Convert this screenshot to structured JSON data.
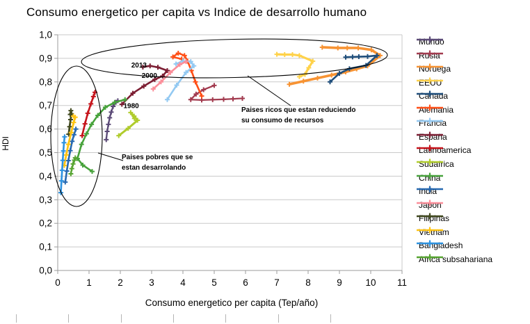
{
  "title": "Consumo energetico per capita vs Indice de desarrollo humano",
  "axes": {
    "x_label": "Consumo energetico per capita (Tep/año)",
    "y_label": "HDI",
    "x_ticks": [
      "0",
      "1",
      "2",
      "3",
      "4",
      "5",
      "6",
      "7",
      "8",
      "9",
      "10",
      "11"
    ],
    "y_ticks": [
      "0,0",
      "0,1",
      "0,2",
      "0,3",
      "0,4",
      "0,5",
      "0,6",
      "0,7",
      "0,8",
      "0,9",
      "1,0"
    ]
  },
  "annotations": {
    "year_2013": "2013",
    "year_2000": "2000",
    "year_1980": "1980",
    "poor_line1": "Paises pobres que se",
    "poor_line2": "estan desarrolando",
    "rich_line1": "Paises ricos que estan reduciendo",
    "rich_line2": "su consumo de recursos"
  },
  "chart_data": {
    "type": "line",
    "title": "Consumo energetico per capita vs Indice de desarrollo humano",
    "xlabel": "Consumo energetico per capita (Tep/año)",
    "ylabel": "HDI",
    "xlim": [
      0,
      11
    ],
    "ylim": [
      0.0,
      1.0
    ],
    "grid": "horizontal",
    "legend_position": "right",
    "marker": "plus",
    "series": [
      {
        "name": "Mundo",
        "color": "#5B4A77",
        "points": [
          [
            1.55,
            0.555
          ],
          [
            1.58,
            0.59
          ],
          [
            1.62,
            0.62
          ],
          [
            1.66,
            0.648
          ],
          [
            1.71,
            0.672
          ],
          [
            1.77,
            0.696
          ],
          [
            1.86,
            0.714
          ],
          [
            1.92,
            0.72
          ]
        ]
      },
      {
        "name": "Rusia",
        "color": "#A23B4F",
        "points": [
          [
            5.9,
            0.73
          ],
          [
            5.3,
            0.726
          ],
          [
            4.6,
            0.723
          ],
          [
            4.25,
            0.725
          ],
          [
            4.42,
            0.748
          ],
          [
            4.66,
            0.767
          ],
          [
            5.0,
            0.785
          ]
        ]
      },
      {
        "name": "Noruega",
        "color": "#F79333",
        "width": 3.6,
        "points": [
          [
            7.4,
            0.79
          ],
          [
            8.3,
            0.816
          ],
          [
            9.2,
            0.842
          ],
          [
            9.9,
            0.868
          ],
          [
            10.3,
            0.912
          ],
          [
            10.02,
            0.936
          ],
          [
            9.6,
            0.944
          ],
          [
            9.25,
            0.944
          ],
          [
            8.95,
            0.944
          ],
          [
            8.45,
            0.947
          ]
        ]
      },
      {
        "name": "EEUU",
        "color": "#FFD24A",
        "width": 3.2,
        "points": [
          [
            7.0,
            0.917
          ],
          [
            7.25,
            0.916
          ],
          [
            7.5,
            0.916
          ],
          [
            7.72,
            0.912
          ],
          [
            8.15,
            0.888
          ],
          [
            8.02,
            0.86
          ],
          [
            7.9,
            0.832
          ],
          [
            7.72,
            0.822
          ]
        ]
      },
      {
        "name": "Canada",
        "color": "#1F4E7B",
        "width": 2.6,
        "points": [
          [
            8.7,
            0.8
          ],
          [
            9.0,
            0.836
          ],
          [
            9.32,
            0.856
          ],
          [
            9.85,
            0.87
          ],
          [
            10.2,
            0.912
          ],
          [
            9.9,
            0.908
          ],
          [
            9.62,
            0.907
          ],
          [
            9.42,
            0.906
          ],
          [
            9.2,
            0.905
          ]
        ]
      },
      {
        "name": "Alemania",
        "color": "#FF4F17",
        "width": 2.6,
        "points": [
          [
            4.6,
            0.74
          ],
          [
            4.4,
            0.8
          ],
          [
            4.27,
            0.848
          ],
          [
            4.15,
            0.888
          ],
          [
            4.05,
            0.912
          ],
          [
            3.85,
            0.922
          ],
          [
            3.68,
            0.906
          ],
          [
            3.96,
            0.897
          ]
        ]
      },
      {
        "name": "Francia",
        "color": "#93C9F2",
        "width": 2.6,
        "points": [
          [
            3.5,
            0.725
          ],
          [
            3.8,
            0.786
          ],
          [
            4.1,
            0.84
          ],
          [
            4.35,
            0.868
          ],
          [
            4.25,
            0.886
          ],
          [
            4.0,
            0.889
          ],
          [
            3.78,
            0.876
          ]
        ]
      },
      {
        "name": "España",
        "color": "#7C1E33",
        "width": 2.6,
        "points": [
          [
            2.05,
            0.705
          ],
          [
            2.4,
            0.752
          ],
          [
            2.75,
            0.782
          ],
          [
            3.1,
            0.81
          ],
          [
            3.35,
            0.825
          ],
          [
            3.5,
            0.848
          ],
          [
            3.2,
            0.862
          ],
          [
            2.95,
            0.868
          ],
          [
            2.72,
            0.863
          ]
        ]
      },
      {
        "name": "Latinoamerica",
        "color": "#C6131B",
        "width": 2.6,
        "points": [
          [
            0.78,
            0.572
          ],
          [
            0.87,
            0.622
          ],
          [
            0.96,
            0.667
          ],
          [
            1.06,
            0.707
          ],
          [
            1.14,
            0.738
          ],
          [
            1.19,
            0.756
          ]
        ]
      },
      {
        "name": "Sudafrica",
        "color": "#B0CC2C",
        "width": 3,
        "points": [
          [
            1.95,
            0.572
          ],
          [
            2.25,
            0.603
          ],
          [
            2.55,
            0.637
          ],
          [
            2.44,
            0.655
          ],
          [
            2.33,
            0.67
          ],
          [
            2.45,
            0.645
          ]
        ]
      },
      {
        "name": "China",
        "color": "#47A23B",
        "width": 2.6,
        "points": [
          [
            1.1,
            0.42
          ],
          [
            0.8,
            0.447
          ],
          [
            0.63,
            0.475
          ],
          [
            0.76,
            0.535
          ],
          [
            0.92,
            0.58
          ],
          [
            1.08,
            0.62
          ],
          [
            1.28,
            0.658
          ],
          [
            1.52,
            0.692
          ],
          [
            1.82,
            0.713
          ],
          [
            2.15,
            0.725
          ]
        ]
      },
      {
        "name": "India",
        "color": "#2668B0",
        "width": 2.6,
        "points": [
          [
            0.24,
            0.375
          ],
          [
            0.29,
            0.422
          ],
          [
            0.34,
            0.466
          ],
          [
            0.4,
            0.508
          ],
          [
            0.46,
            0.548
          ],
          [
            0.52,
            0.576
          ],
          [
            0.58,
            0.6
          ]
        ]
      },
      {
        "name": "Japon",
        "color": "#FB8E99",
        "width": 2.6,
        "points": [
          [
            3.05,
            0.77
          ],
          [
            3.3,
            0.8
          ],
          [
            3.6,
            0.84
          ],
          [
            3.9,
            0.874
          ],
          [
            4.1,
            0.886
          ]
        ]
      },
      {
        "name": "Filipinas",
        "color": "#41491F",
        "width": 2.8,
        "points": [
          [
            0.35,
            0.578
          ],
          [
            0.38,
            0.61
          ],
          [
            0.41,
            0.64
          ],
          [
            0.44,
            0.665
          ],
          [
            0.42,
            0.678
          ],
          [
            0.4,
            0.662
          ]
        ]
      },
      {
        "name": "Vietnam",
        "color": "#FFC414",
        "width": 2.8,
        "points": [
          [
            0.21,
            0.445
          ],
          [
            0.27,
            0.49
          ],
          [
            0.34,
            0.535
          ],
          [
            0.43,
            0.585
          ],
          [
            0.51,
            0.628
          ],
          [
            0.56,
            0.65
          ],
          [
            0.5,
            0.655
          ]
        ]
      },
      {
        "name": "Bangladesh",
        "color": "#2D92E0",
        "width": 2.6,
        "points": [
          [
            0.1,
            0.33
          ],
          [
            0.12,
            0.38
          ],
          [
            0.14,
            0.425
          ],
          [
            0.16,
            0.467
          ],
          [
            0.18,
            0.507
          ],
          [
            0.2,
            0.542
          ],
          [
            0.22,
            0.567
          ]
        ]
      },
      {
        "name": "Africa subsahariana",
        "color": "#56A430",
        "width": 2.4,
        "points": [
          [
            0.42,
            0.41
          ],
          [
            0.45,
            0.432
          ],
          [
            0.49,
            0.452
          ],
          [
            0.53,
            0.468
          ],
          [
            0.56,
            0.478
          ]
        ]
      }
    ]
  }
}
